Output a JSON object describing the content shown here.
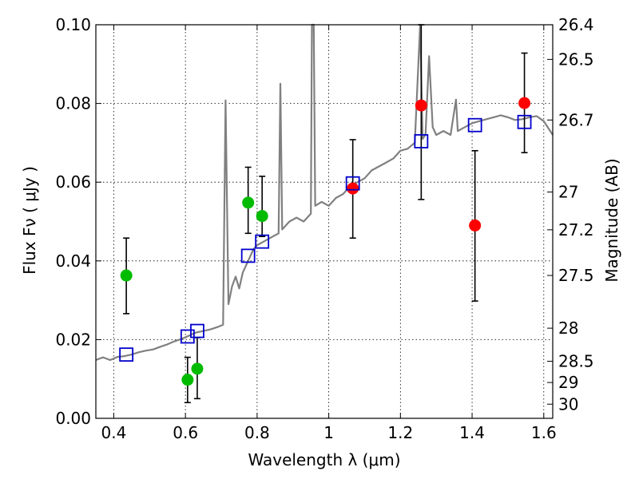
{
  "chart_data": {
    "type": "scatter",
    "xlabel": "Wavelength  λ (μm)",
    "ylabel": "Flux  Fν  ( μJy )",
    "ylabel_right": "Magnitude (AB)",
    "xlim": [
      0.35,
      1.625
    ],
    "ylim": [
      0.0,
      0.1
    ],
    "grid": true,
    "x_ticks": [
      {
        "value": 0.4,
        "label": "0.4"
      },
      {
        "value": 0.6,
        "label": "0.6"
      },
      {
        "value": 0.8,
        "label": "0.8"
      },
      {
        "value": 1.0,
        "label": "1"
      },
      {
        "value": 1.2,
        "label": "1.2"
      },
      {
        "value": 1.4,
        "label": "1.4"
      },
      {
        "value": 1.6,
        "label": "1.6"
      }
    ],
    "y_ticks": [
      {
        "value": 0.0,
        "label": "0.00"
      },
      {
        "value": 0.02,
        "label": "0.02"
      },
      {
        "value": 0.04,
        "label": "0.04"
      },
      {
        "value": 0.06,
        "label": "0.06"
      },
      {
        "value": 0.08,
        "label": "0.08"
      },
      {
        "value": 0.1,
        "label": "0.10"
      }
    ],
    "mag_ticks": [
      {
        "flux": 0.1,
        "label": "26.4"
      },
      {
        "flux": 0.0912,
        "label": "26.5"
      },
      {
        "flux": 0.0758,
        "label": "26.7"
      },
      {
        "flux": 0.0575,
        "label": "27"
      },
      {
        "flux": 0.0479,
        "label": "27.2"
      },
      {
        "flux": 0.0363,
        "label": "27.5"
      },
      {
        "flux": 0.0229,
        "label": "28"
      },
      {
        "flux": 0.0145,
        "label": "28.5"
      },
      {
        "flux": 0.0091,
        "label": "29"
      },
      {
        "flux": 0.0036,
        "label": "30"
      }
    ],
    "series": [
      {
        "color": "#00bb00",
        "marker": "circle",
        "points": [
          {
            "x": 0.435,
            "y": 0.0363,
            "err_lo": 0.0266,
            "err_hi": 0.0458
          },
          {
            "x": 0.606,
            "y": 0.0098,
            "err_lo": 0.004,
            "err_hi": 0.0155
          },
          {
            "x": 0.633,
            "y": 0.0126,
            "err_lo": 0.005,
            "err_hi": 0.0205
          },
          {
            "x": 0.775,
            "y": 0.0548,
            "err_lo": 0.047,
            "err_hi": 0.0638
          },
          {
            "x": 0.814,
            "y": 0.0514,
            "err_lo": 0.0462,
            "err_hi": 0.0615
          }
        ]
      },
      {
        "color": "#ff0000",
        "marker": "circle",
        "points": [
          {
            "x": 1.067,
            "y": 0.0584,
            "err_lo": 0.0458,
            "err_hi": 0.0708
          },
          {
            "x": 1.258,
            "y": 0.0795,
            "err_lo": 0.0556,
            "err_hi": 0.1
          },
          {
            "x": 1.408,
            "y": 0.049,
            "err_lo": 0.0298,
            "err_hi": 0.068
          },
          {
            "x": 1.546,
            "y": 0.0801,
            "err_lo": 0.0675,
            "err_hi": 0.0928
          }
        ]
      },
      {
        "color": "#0000cc",
        "marker": "open-square",
        "points": [
          {
            "x": 0.435,
            "y": 0.0162
          },
          {
            "x": 0.606,
            "y": 0.0208
          },
          {
            "x": 0.633,
            "y": 0.0222
          },
          {
            "x": 0.775,
            "y": 0.0413
          },
          {
            "x": 0.814,
            "y": 0.0449
          },
          {
            "x": 1.067,
            "y": 0.0597
          },
          {
            "x": 1.258,
            "y": 0.0704
          },
          {
            "x": 1.408,
            "y": 0.0745
          },
          {
            "x": 1.546,
            "y": 0.0753
          }
        ]
      },
      {
        "color": "#808080",
        "marker": "line",
        "points": [
          {
            "x": 0.35,
            "y": 0.0148
          },
          {
            "x": 0.37,
            "y": 0.0155
          },
          {
            "x": 0.39,
            "y": 0.0148
          },
          {
            "x": 0.41,
            "y": 0.0156
          },
          {
            "x": 0.43,
            "y": 0.0158
          },
          {
            "x": 0.45,
            "y": 0.0162
          },
          {
            "x": 0.47,
            "y": 0.0168
          },
          {
            "x": 0.49,
            "y": 0.0172
          },
          {
            "x": 0.51,
            "y": 0.0175
          },
          {
            "x": 0.53,
            "y": 0.0182
          },
          {
            "x": 0.55,
            "y": 0.0188
          },
          {
            "x": 0.57,
            "y": 0.0196
          },
          {
            "x": 0.59,
            "y": 0.0202
          },
          {
            "x": 0.61,
            "y": 0.021
          },
          {
            "x": 0.63,
            "y": 0.0218
          },
          {
            "x": 0.65,
            "y": 0.0222
          },
          {
            "x": 0.67,
            "y": 0.0226
          },
          {
            "x": 0.69,
            "y": 0.0232
          },
          {
            "x": 0.705,
            "y": 0.0238
          },
          {
            "x": 0.712,
            "y": 0.0808
          },
          {
            "x": 0.72,
            "y": 0.029
          },
          {
            "x": 0.73,
            "y": 0.0335
          },
          {
            "x": 0.74,
            "y": 0.036
          },
          {
            "x": 0.75,
            "y": 0.033
          },
          {
            "x": 0.76,
            "y": 0.037
          },
          {
            "x": 0.77,
            "y": 0.039
          },
          {
            "x": 0.78,
            "y": 0.041
          },
          {
            "x": 0.79,
            "y": 0.043
          },
          {
            "x": 0.8,
            "y": 0.044
          },
          {
            "x": 0.82,
            "y": 0.045
          },
          {
            "x": 0.84,
            "y": 0.046
          },
          {
            "x": 0.86,
            "y": 0.047
          },
          {
            "x": 0.865,
            "y": 0.085
          },
          {
            "x": 0.87,
            "y": 0.048
          },
          {
            "x": 0.89,
            "y": 0.05
          },
          {
            "x": 0.91,
            "y": 0.051
          },
          {
            "x": 0.93,
            "y": 0.05
          },
          {
            "x": 0.95,
            "y": 0.052
          },
          {
            "x": 0.953,
            "y": 0.1
          },
          {
            "x": 0.958,
            "y": 0.1
          },
          {
            "x": 0.962,
            "y": 0.054
          },
          {
            "x": 0.98,
            "y": 0.055
          },
          {
            "x": 1.0,
            "y": 0.054
          },
          {
            "x": 1.02,
            "y": 0.056
          },
          {
            "x": 1.04,
            "y": 0.057
          },
          {
            "x": 1.06,
            "y": 0.059
          },
          {
            "x": 1.08,
            "y": 0.06
          },
          {
            "x": 1.1,
            "y": 0.061
          },
          {
            "x": 1.12,
            "y": 0.063
          },
          {
            "x": 1.14,
            "y": 0.064
          },
          {
            "x": 1.16,
            "y": 0.065
          },
          {
            "x": 1.18,
            "y": 0.066
          },
          {
            "x": 1.2,
            "y": 0.068
          },
          {
            "x": 1.22,
            "y": 0.0685
          },
          {
            "x": 1.24,
            "y": 0.07
          },
          {
            "x": 1.255,
            "y": 0.1
          },
          {
            "x": 1.262,
            "y": 0.071
          },
          {
            "x": 1.27,
            "y": 0.072
          },
          {
            "x": 1.28,
            "y": 0.092
          },
          {
            "x": 1.29,
            "y": 0.074
          },
          {
            "x": 1.3,
            "y": 0.072
          },
          {
            "x": 1.32,
            "y": 0.073
          },
          {
            "x": 1.34,
            "y": 0.072
          },
          {
            "x": 1.355,
            "y": 0.081
          },
          {
            "x": 1.36,
            "y": 0.073
          },
          {
            "x": 1.38,
            "y": 0.074
          },
          {
            "x": 1.4,
            "y": 0.075
          },
          {
            "x": 1.42,
            "y": 0.0755
          },
          {
            "x": 1.44,
            "y": 0.076
          },
          {
            "x": 1.46,
            "y": 0.0765
          },
          {
            "x": 1.48,
            "y": 0.077
          },
          {
            "x": 1.5,
            "y": 0.0765
          },
          {
            "x": 1.52,
            "y": 0.0758
          },
          {
            "x": 1.54,
            "y": 0.076
          },
          {
            "x": 1.56,
            "y": 0.0765
          },
          {
            "x": 1.58,
            "y": 0.0768
          },
          {
            "x": 1.6,
            "y": 0.0755
          },
          {
            "x": 1.625,
            "y": 0.072
          }
        ]
      }
    ]
  }
}
